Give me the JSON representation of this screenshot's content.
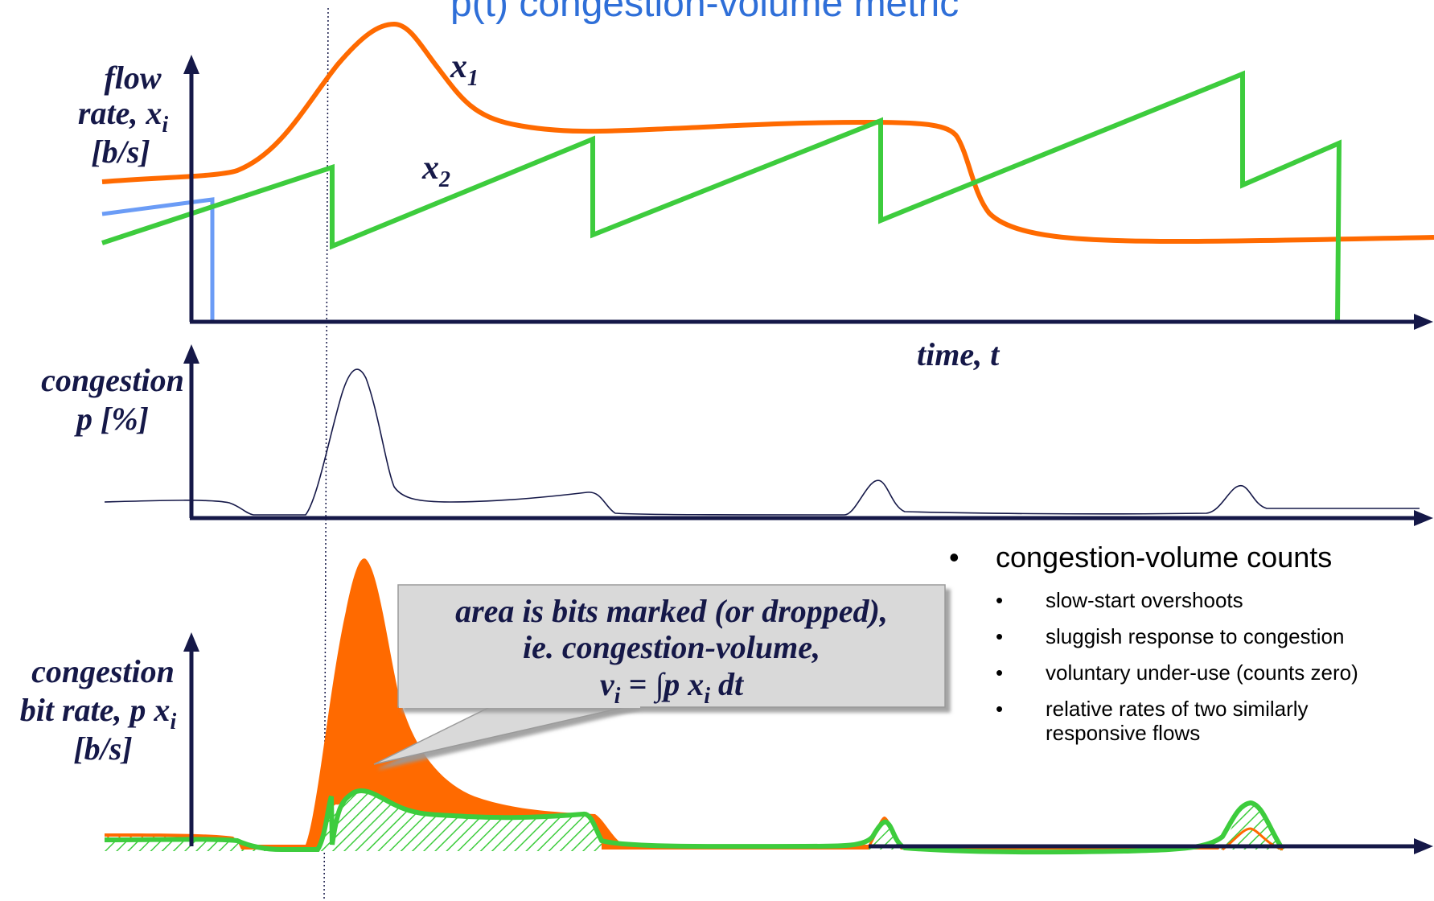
{
  "title_fragment": "p(t) congestion-volume metric",
  "axes": {
    "flow_rate_label_line1": "flow",
    "flow_rate_label_line2": "rate, x",
    "flow_rate_label_sub": "i",
    "flow_rate_label_line3": "[b/s]",
    "time_label": "time, t",
    "congestion_label_line1": "congestion",
    "congestion_label_line2": "p [%]",
    "cbr_label_line1": "congestion",
    "cbr_label_line2": "bit rate, p x",
    "cbr_label_sub": "i",
    "cbr_label_line3": "[b/s]"
  },
  "series_labels": {
    "x1": "x",
    "x1_sub": "1",
    "x2": "x",
    "x2_sub": "2"
  },
  "callout": {
    "line1": "area is bits marked (or dropped),",
    "line2": "ie. congestion-volume,",
    "line3_lhs": "v",
    "line3_lhs_sub": "i",
    "line3_rhs": " = ∫p x",
    "line3_rhs_sub": "i",
    "line3_tail": " dt"
  },
  "bullets": {
    "main": "congestion-volume counts",
    "items": [
      "slow-start overshoots",
      "sluggish response to congestion",
      "voluntary under-use (counts zero)",
      "relative rates of two similarly",
      "responsive flows"
    ]
  },
  "colors": {
    "axis": "#151848",
    "x1": "#ff6a00",
    "x2": "#3dcc3d",
    "early_flow": "#6b9cf6",
    "title": "#2f6fd8"
  }
}
